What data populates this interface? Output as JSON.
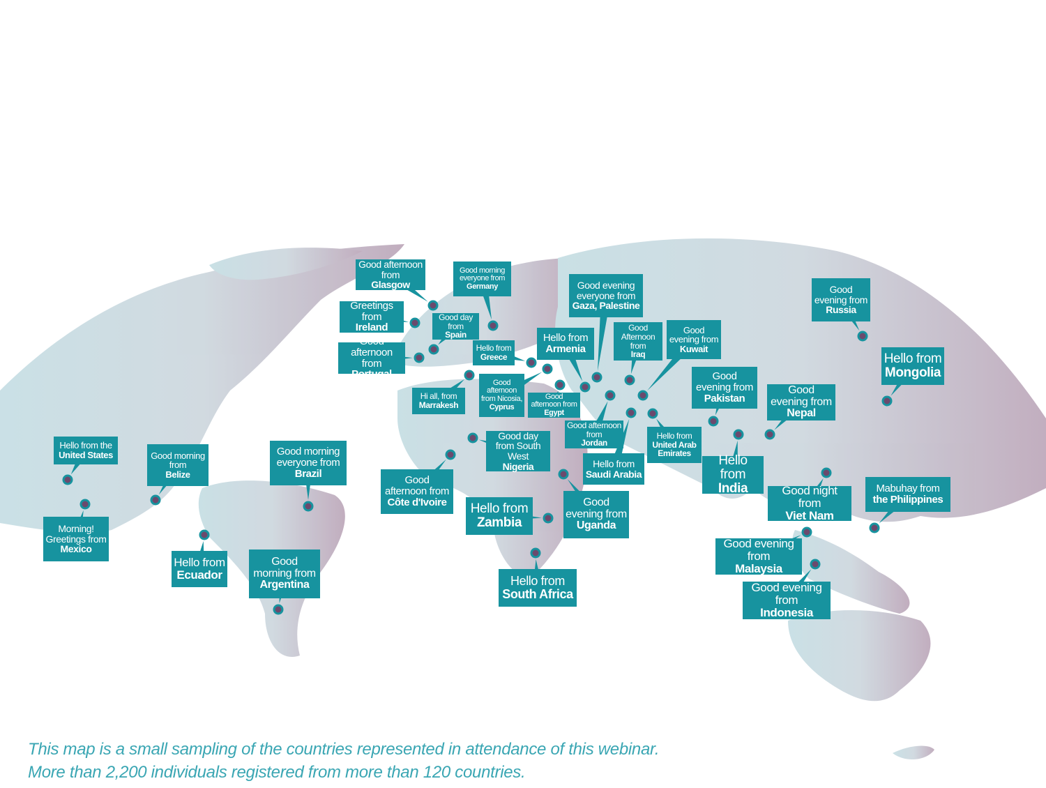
{
  "colors": {
    "callout": "#17939f",
    "dot": "#6b4a6d",
    "caption": "#3aa6b3",
    "land_west": "#c4dde3",
    "land_east": "#bba5b8"
  },
  "callouts": [
    {
      "pre": "Good afternoon from",
      "bold": "Glasgow"
    },
    {
      "pre": "Greetings from",
      "bold": "Ireland"
    },
    {
      "pre": "Good afternoon from",
      "bold": "Portugal"
    },
    {
      "pre": "Good day from",
      "bold": "Spain"
    },
    {
      "pre": "Good morning everyone from",
      "bold": "Germany"
    },
    {
      "pre": "Hello from",
      "bold": "Greece"
    },
    {
      "pre": "Hi all, from",
      "bold": "Marrakesh"
    },
    {
      "pre": "Good afternoon from Nicosia,",
      "bold": "Cyprus"
    },
    {
      "pre": "Good afternoon from",
      "bold": "Egypt"
    },
    {
      "pre": "Hello from",
      "bold": "Armenia"
    },
    {
      "pre": "Good evening everyone from",
      "bold": "Gaza, Palestine"
    },
    {
      "pre": "Good Afternoon from",
      "bold": "Iraq"
    },
    {
      "pre": "Good evening from",
      "bold": "Kuwait"
    },
    {
      "pre": "Good afternoon from",
      "bold": "Jordan"
    },
    {
      "pre": "Hello from",
      "bold": "Saudi Arabia"
    },
    {
      "pre": "Hello from",
      "bold": "United Arab Emirates"
    },
    {
      "pre": "Good evening from",
      "bold": "Pakistan"
    },
    {
      "pre": "Hello from",
      "bold": "India"
    },
    {
      "pre": "Good evening from",
      "bold": "Nepal"
    },
    {
      "pre": "Good evening from",
      "bold": "Russia"
    },
    {
      "pre": "Hello from",
      "bold": "Mongolia"
    },
    {
      "pre": "Good night from",
      "bold": "Viet Nam"
    },
    {
      "pre": "Mabuhay from",
      "bold": "the Philippines"
    },
    {
      "pre": "Good evening from",
      "bold": "Malaysia"
    },
    {
      "pre": "Good evening from",
      "bold": "Indonesia"
    },
    {
      "pre": "Hello from",
      "bold": "South Africa"
    },
    {
      "pre": "Hello from",
      "bold": "Zambia"
    },
    {
      "pre": "Good evening from",
      "bold": "Uganda"
    },
    {
      "pre": "Good day from South West",
      "bold": "Nigeria"
    },
    {
      "pre": "Good afternoon from",
      "bold": "Côte d'Ivoire"
    },
    {
      "pre": "Hello from the",
      "bold": "United States"
    },
    {
      "pre": "Morning! Greetings from",
      "bold": "Mexico"
    },
    {
      "pre": "Good morning from",
      "bold": "Belize"
    },
    {
      "pre": "Good morning everyone from",
      "bold": "Brazil"
    },
    {
      "pre": "Hello from",
      "bold": "Ecuador"
    },
    {
      "pre": "Good morning from",
      "bold": "Argentina"
    }
  ],
  "caption": {
    "line1": "This map is a small sampling of the countries represented in attendance of this webinar.",
    "line2": "More than 2,200 individuals registered from more than 120 countries."
  }
}
